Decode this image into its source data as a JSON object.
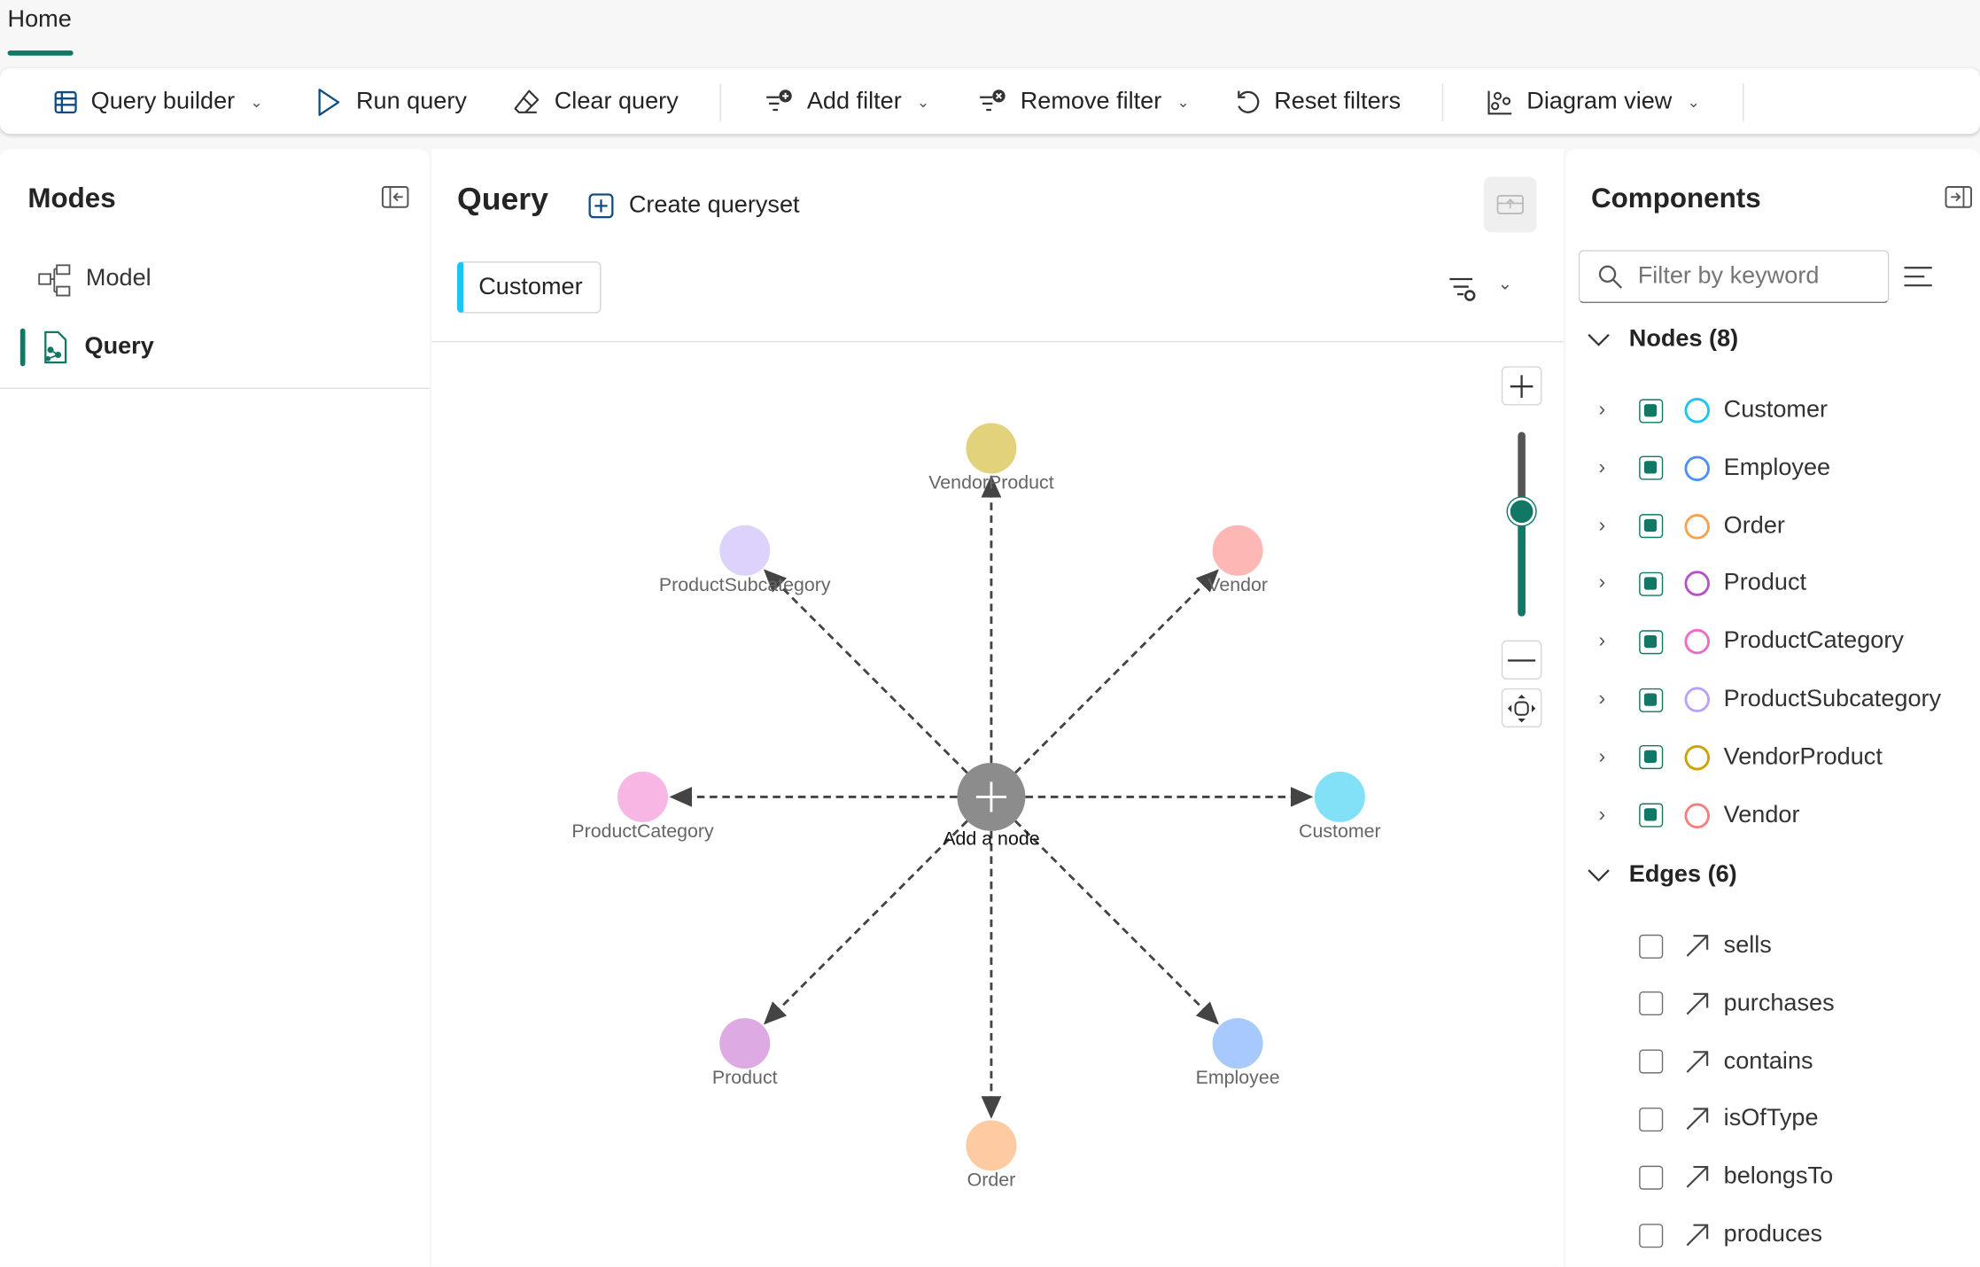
{
  "tabs": {
    "home": "Home"
  },
  "toolbar": {
    "query_builder": "Query builder",
    "run_query": "Run query",
    "clear_query": "Clear query",
    "add_filter": "Add filter",
    "remove_filter": "Remove filter",
    "reset_filters": "Reset filters",
    "diagram_view": "Diagram view"
  },
  "modes": {
    "title": "Modes",
    "items": [
      {
        "label": "Model",
        "active": false
      },
      {
        "label": "Query",
        "active": true
      }
    ]
  },
  "query": {
    "title": "Query",
    "create_queryset": "Create queryset",
    "selected_tag": "Customer",
    "center_label": "Add a node",
    "graph_nodes": [
      {
        "label": "VendorProduct",
        "fill": "#e2d27c"
      },
      {
        "label": "Vendor",
        "fill": "#fdb8b5"
      },
      {
        "label": "Customer",
        "fill": "#82e1f6"
      },
      {
        "label": "Employee",
        "fill": "#a7c9fb"
      },
      {
        "label": "Order",
        "fill": "#fdcaa2"
      },
      {
        "label": "Product",
        "fill": "#ddaae3"
      },
      {
        "label": "ProductCategory",
        "fill": "#f7b6e4"
      },
      {
        "label": "ProductSubcategory",
        "fill": "#dcd2fb"
      }
    ],
    "zoom_level": 0.57
  },
  "components": {
    "title": "Components",
    "search_placeholder": "Filter by keyword",
    "nodes_header": "Nodes (8)",
    "nodes": [
      {
        "label": "Customer",
        "color": "#1ac6f0",
        "checked": true
      },
      {
        "label": "Employee",
        "color": "#4a90f5",
        "checked": true
      },
      {
        "label": "Order",
        "color": "#f7a14c",
        "checked": true
      },
      {
        "label": "Product",
        "color": "#b84fcb",
        "checked": true
      },
      {
        "label": "ProductCategory",
        "color": "#ef69c8",
        "checked": true
      },
      {
        "label": "ProductSubcategory",
        "color": "#b9a2fb",
        "checked": true
      },
      {
        "label": "VendorProduct",
        "color": "#c9a400",
        "checked": true
      },
      {
        "label": "Vendor",
        "color": "#f57e7e",
        "checked": true
      }
    ],
    "edges_header": "Edges (6)",
    "edges": [
      {
        "label": "sells",
        "checked": false
      },
      {
        "label": "purchases",
        "checked": false
      },
      {
        "label": "contains",
        "checked": false
      },
      {
        "label": "isOfType",
        "checked": false
      },
      {
        "label": "belongsTo",
        "checked": false
      },
      {
        "label": "produces",
        "checked": false
      }
    ]
  },
  "colors": {
    "accent": "#117865",
    "tag_accent": "#1ac6f0"
  }
}
